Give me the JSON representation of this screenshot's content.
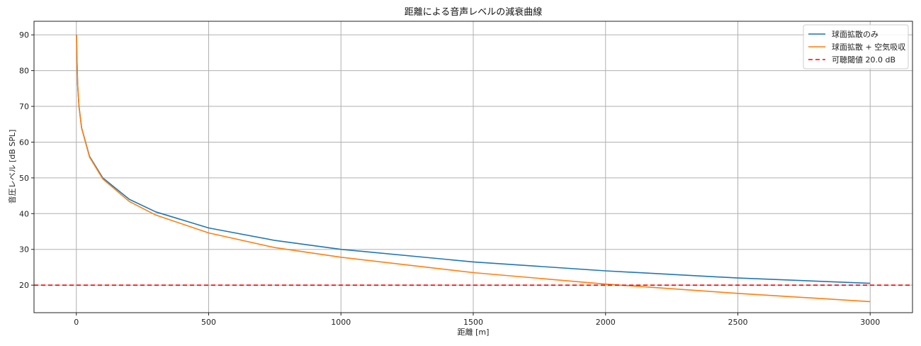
{
  "chart_data": {
    "type": "line",
    "title": "距離による音声レベルの減衰曲線",
    "xlabel": "距離 [m]",
    "ylabel": "音圧レベル [dB SPL]",
    "xlim": [
      -160,
      3160
    ],
    "ylim": [
      12.3,
      93.8
    ],
    "x_ticks": [
      0,
      500,
      1000,
      1500,
      2000,
      2500,
      3000
    ],
    "y_ticks": [
      20,
      30,
      40,
      50,
      60,
      70,
      80,
      90
    ],
    "grid": true,
    "legend_position": "top-right",
    "series": [
      {
        "name": "球面拡散のみ",
        "color": "#1f77b4",
        "x": [
          1,
          2,
          5,
          10,
          20,
          50,
          100,
          200,
          300,
          500,
          750,
          1000,
          1500,
          2000,
          2500,
          3000
        ],
        "y": [
          90.0,
          84.0,
          76.0,
          70.0,
          64.0,
          56.0,
          50.0,
          44.0,
          40.5,
          36.0,
          32.5,
          30.0,
          26.5,
          24.0,
          22.0,
          20.5
        ]
      },
      {
        "name": "球面拡散 + 空気吸収",
        "color": "#ff7f0e",
        "x": [
          1,
          2,
          5,
          10,
          20,
          50,
          100,
          200,
          300,
          500,
          750,
          1000,
          1500,
          2000,
          2500,
          3000
        ],
        "y": [
          90.0,
          84.0,
          76.0,
          70.0,
          63.9,
          55.8,
          49.7,
          43.4,
          39.6,
          34.6,
          30.5,
          27.8,
          23.5,
          20.3,
          17.7,
          15.4
        ]
      },
      {
        "name": "可聴閾値 20.0 dB",
        "color": "#ff0000",
        "style": "dashed",
        "y": 20.0
      }
    ]
  }
}
